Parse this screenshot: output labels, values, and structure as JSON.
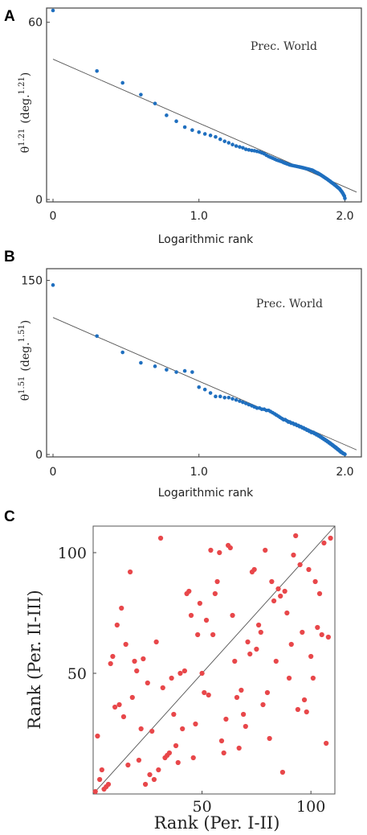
{
  "chart_data": [
    {
      "panel": "A",
      "type": "scatter",
      "annotation": "Prec. World",
      "ylabel": "θ^1.21 (deg.^1.21)",
      "ylabel_base": "θ",
      "ylabel_exp": "1.21",
      "ylabel_unit": "(deg.",
      "ylabel_unit_exp": "1.21",
      "ylabel_close": ")",
      "xlabel": "Logarithmic rank",
      "xlim": [
        0,
        2.08
      ],
      "ylim": [
        0,
        64
      ],
      "x_ticks": [
        {
          "v": 0,
          "label": "0"
        },
        {
          "v": 1,
          "label": "1.0"
        },
        {
          "v": 2,
          "label": "2.0"
        }
      ],
      "y_ticks": [
        {
          "v": 0,
          "label": "0"
        },
        {
          "v": 60,
          "label": "60"
        }
      ],
      "fit_line": [
        [
          0,
          47.5
        ],
        [
          2.08,
          2.5
        ]
      ],
      "points": [
        [
          0,
          64
        ],
        [
          0.301,
          43.5
        ],
        [
          0.477,
          39.5
        ],
        [
          0.602,
          35.5
        ],
        [
          0.699,
          32.5
        ],
        [
          0.778,
          28.5
        ],
        [
          0.845,
          26.5
        ],
        [
          0.903,
          24.5
        ],
        [
          0.954,
          23.5
        ],
        [
          1.0,
          22.8
        ],
        [
          1.041,
          22.2
        ],
        [
          1.079,
          21.7
        ],
        [
          1.114,
          21.2
        ],
        [
          1.146,
          20.4
        ],
        [
          1.176,
          19.7
        ],
        [
          1.204,
          19.2
        ],
        [
          1.23,
          18.6
        ],
        [
          1.255,
          18.1
        ],
        [
          1.279,
          17.8
        ],
        [
          1.301,
          17.5
        ],
        [
          1.322,
          17.0
        ],
        [
          1.342,
          16.8
        ],
        [
          1.362,
          16.6
        ],
        [
          1.38,
          16.5
        ],
        [
          1.398,
          16.3
        ],
        [
          1.415,
          16.1
        ],
        [
          1.431,
          15.8
        ],
        [
          1.447,
          15.5
        ],
        [
          1.462,
          15.0
        ],
        [
          1.477,
          14.6
        ],
        [
          1.491,
          14.3
        ],
        [
          1.505,
          14.0
        ],
        [
          1.519,
          13.7
        ],
        [
          1.531,
          13.4
        ],
        [
          1.544,
          13.2
        ],
        [
          1.556,
          13.0
        ],
        [
          1.568,
          12.8
        ],
        [
          1.58,
          12.5
        ],
        [
          1.591,
          12.3
        ],
        [
          1.602,
          12.1
        ],
        [
          1.613,
          11.9
        ],
        [
          1.623,
          11.7
        ],
        [
          1.633,
          11.6
        ],
        [
          1.643,
          11.5
        ],
        [
          1.653,
          11.4
        ],
        [
          1.663,
          11.3
        ],
        [
          1.672,
          11.2
        ],
        [
          1.681,
          11.1
        ],
        [
          1.69,
          11.0
        ],
        [
          1.699,
          10.9
        ],
        [
          1.708,
          10.8
        ],
        [
          1.716,
          10.7
        ],
        [
          1.724,
          10.6
        ],
        [
          1.732,
          10.5
        ],
        [
          1.74,
          10.4
        ],
        [
          1.748,
          10.3
        ],
        [
          1.756,
          10.2
        ],
        [
          1.763,
          10.1
        ],
        [
          1.771,
          10.0
        ],
        [
          1.778,
          9.9
        ],
        [
          1.785,
          9.7
        ],
        [
          1.792,
          9.5
        ],
        [
          1.799,
          9.3
        ],
        [
          1.806,
          9.1
        ],
        [
          1.813,
          9.0
        ],
        [
          1.82,
          8.8
        ],
        [
          1.826,
          8.6
        ],
        [
          1.833,
          8.4
        ],
        [
          1.839,
          8.2
        ],
        [
          1.845,
          8.0
        ],
        [
          1.851,
          7.8
        ],
        [
          1.857,
          7.6
        ],
        [
          1.863,
          7.4
        ],
        [
          1.869,
          7.2
        ],
        [
          1.875,
          7.0
        ],
        [
          1.881,
          6.8
        ],
        [
          1.886,
          6.6
        ],
        [
          1.892,
          6.4
        ],
        [
          1.898,
          6.2
        ],
        [
          1.903,
          6.0
        ],
        [
          1.908,
          5.8
        ],
        [
          1.914,
          5.6
        ],
        [
          1.919,
          5.4
        ],
        [
          1.924,
          5.2
        ],
        [
          1.929,
          5.0
        ],
        [
          1.934,
          4.8
        ],
        [
          1.94,
          4.6
        ],
        [
          1.944,
          4.4
        ],
        [
          1.949,
          4.2
        ],
        [
          1.954,
          4.0
        ],
        [
          1.959,
          3.8
        ],
        [
          1.964,
          3.6
        ],
        [
          1.968,
          3.3
        ],
        [
          1.973,
          3.0
        ],
        [
          1.978,
          2.7
        ],
        [
          1.982,
          2.4
        ],
        [
          1.987,
          2.0
        ],
        [
          1.991,
          1.6
        ],
        [
          1.996,
          1.2
        ],
        [
          2.0,
          0.4
        ]
      ]
    },
    {
      "panel": "B",
      "type": "scatter",
      "annotation": "Prec. World",
      "ylabel": "θ^1.51 (deg.^1.51)",
      "ylabel_base": "θ",
      "ylabel_exp": "1.51",
      "ylabel_unit": "(deg.",
      "ylabel_unit_exp": "1.51",
      "ylabel_close": ")",
      "xlabel": "Logarithmic rank",
      "xlim": [
        0,
        2.08
      ],
      "ylim": [
        0,
        158
      ],
      "x_ticks": [
        {
          "v": 0,
          "label": "0"
        },
        {
          "v": 1,
          "label": "1.0"
        },
        {
          "v": 2,
          "label": "2.0"
        }
      ],
      "y_ticks": [
        {
          "v": 0,
          "label": "0"
        },
        {
          "v": 150,
          "label": "150"
        }
      ],
      "fit_line": [
        [
          0,
          118
        ],
        [
          2.08,
          4
        ]
      ],
      "points": [
        [
          0,
          146
        ],
        [
          0.301,
          102
        ],
        [
          0.477,
          88
        ],
        [
          0.602,
          79
        ],
        [
          0.699,
          76
        ],
        [
          0.778,
          73
        ],
        [
          0.845,
          71
        ],
        [
          0.903,
          72
        ],
        [
          0.954,
          71
        ],
        [
          1.0,
          58
        ],
        [
          1.041,
          56
        ],
        [
          1.079,
          53
        ],
        [
          1.114,
          50
        ],
        [
          1.146,
          50
        ],
        [
          1.176,
          49
        ],
        [
          1.204,
          49
        ],
        [
          1.23,
          48
        ],
        [
          1.255,
          47
        ],
        [
          1.279,
          46
        ],
        [
          1.301,
          45
        ],
        [
          1.322,
          44
        ],
        [
          1.342,
          43
        ],
        [
          1.362,
          42
        ],
        [
          1.38,
          41
        ],
        [
          1.398,
          40
        ],
        [
          1.415,
          40
        ],
        [
          1.431,
          39
        ],
        [
          1.447,
          39
        ],
        [
          1.462,
          38
        ],
        [
          1.477,
          38
        ],
        [
          1.491,
          37
        ],
        [
          1.505,
          36
        ],
        [
          1.519,
          35
        ],
        [
          1.531,
          34
        ],
        [
          1.544,
          33
        ],
        [
          1.556,
          32
        ],
        [
          1.568,
          31
        ],
        [
          1.58,
          30
        ],
        [
          1.591,
          30
        ],
        [
          1.602,
          29
        ],
        [
          1.613,
          28
        ],
        [
          1.623,
          28
        ],
        [
          1.633,
          27
        ],
        [
          1.643,
          27
        ],
        [
          1.653,
          26
        ],
        [
          1.663,
          26
        ],
        [
          1.672,
          25
        ],
        [
          1.681,
          25
        ],
        [
          1.69,
          24
        ],
        [
          1.699,
          24
        ],
        [
          1.708,
          23
        ],
        [
          1.716,
          23
        ],
        [
          1.724,
          22
        ],
        [
          1.732,
          22
        ],
        [
          1.74,
          21
        ],
        [
          1.748,
          21
        ],
        [
          1.756,
          20
        ],
        [
          1.763,
          20
        ],
        [
          1.771,
          19
        ],
        [
          1.778,
          19
        ],
        [
          1.785,
          19
        ],
        [
          1.792,
          18
        ],
        [
          1.799,
          18
        ],
        [
          1.806,
          17
        ],
        [
          1.813,
          17
        ],
        [
          1.82,
          16
        ],
        [
          1.826,
          16
        ],
        [
          1.833,
          15
        ],
        [
          1.839,
          15
        ],
        [
          1.845,
          14
        ],
        [
          1.851,
          14
        ],
        [
          1.857,
          13
        ],
        [
          1.863,
          13
        ],
        [
          1.869,
          12
        ],
        [
          1.875,
          12
        ],
        [
          1.881,
          11
        ],
        [
          1.886,
          11
        ],
        [
          1.892,
          10
        ],
        [
          1.898,
          10
        ],
        [
          1.903,
          9
        ],
        [
          1.908,
          9
        ],
        [
          1.914,
          8
        ],
        [
          1.919,
          8
        ],
        [
          1.924,
          7
        ],
        [
          1.929,
          7
        ],
        [
          1.934,
          6
        ],
        [
          1.94,
          6
        ],
        [
          1.944,
          5
        ],
        [
          1.949,
          5
        ],
        [
          1.954,
          4
        ],
        [
          1.959,
          4
        ],
        [
          1.964,
          3
        ],
        [
          1.968,
          3
        ],
        [
          1.973,
          2
        ],
        [
          1.978,
          2
        ],
        [
          1.982,
          1.5
        ],
        [
          1.987,
          1
        ],
        [
          1.991,
          0.8
        ],
        [
          1.996,
          0.5
        ],
        [
          2.0,
          0.2
        ]
      ]
    },
    {
      "panel": "C",
      "type": "scatter",
      "xlabel": "Rank (Per. I-II)",
      "ylabel": "Rank (Per. II-III)",
      "xlim": [
        0,
        111
      ],
      "ylim": [
        0,
        111
      ],
      "x_ticks": [
        {
          "v": 50,
          "label": "50"
        },
        {
          "v": 100,
          "label": "100"
        }
      ],
      "y_ticks": [
        {
          "v": 50,
          "label": "50"
        },
        {
          "v": 100,
          "label": "100"
        }
      ],
      "fit_line": [
        [
          0,
          0
        ],
        [
          111,
          111
        ]
      ],
      "points": [
        [
          1,
          1
        ],
        [
          2,
          24
        ],
        [
          3,
          6
        ],
        [
          4,
          10
        ],
        [
          5,
          2
        ],
        [
          6,
          3
        ],
        [
          7,
          4
        ],
        [
          8,
          54
        ],
        [
          9,
          57
        ],
        [
          10,
          36
        ],
        [
          11,
          70
        ],
        [
          12,
          37
        ],
        [
          13,
          77
        ],
        [
          14,
          32
        ],
        [
          15,
          62
        ],
        [
          16,
          12
        ],
        [
          17,
          92
        ],
        [
          18,
          40
        ],
        [
          19,
          55
        ],
        [
          20,
          51
        ],
        [
          21,
          14
        ],
        [
          22,
          27
        ],
        [
          23,
          56
        ],
        [
          24,
          4
        ],
        [
          25,
          46
        ],
        [
          26,
          8
        ],
        [
          27,
          26
        ],
        [
          28,
          6
        ],
        [
          29,
          63
        ],
        [
          30,
          10
        ],
        [
          31,
          106
        ],
        [
          32,
          44
        ],
        [
          33,
          15
        ],
        [
          34,
          16
        ],
        [
          35,
          17
        ],
        [
          36,
          48
        ],
        [
          37,
          33
        ],
        [
          38,
          20
        ],
        [
          39,
          13
        ],
        [
          40,
          50
        ],
        [
          41,
          27
        ],
        [
          42,
          51
        ],
        [
          43,
          83
        ],
        [
          44,
          84
        ],
        [
          45,
          74
        ],
        [
          46,
          15
        ],
        [
          47,
          29
        ],
        [
          48,
          66
        ],
        [
          49,
          79
        ],
        [
          50,
          50
        ],
        [
          51,
          42
        ],
        [
          52,
          72
        ],
        [
          53,
          41
        ],
        [
          54,
          101
        ],
        [
          55,
          66
        ],
        [
          56,
          83
        ],
        [
          57,
          88
        ],
        [
          58,
          100
        ],
        [
          59,
          22
        ],
        [
          60,
          17
        ],
        [
          61,
          31
        ],
        [
          62,
          103
        ],
        [
          63,
          102
        ],
        [
          64,
          74
        ],
        [
          65,
          55
        ],
        [
          66,
          40
        ],
        [
          67,
          19
        ],
        [
          68,
          43
        ],
        [
          69,
          33
        ],
        [
          70,
          28
        ],
        [
          71,
          63
        ],
        [
          72,
          58
        ],
        [
          73,
          92
        ],
        [
          74,
          93
        ],
        [
          75,
          60
        ],
        [
          76,
          70
        ],
        [
          77,
          67
        ],
        [
          78,
          37
        ],
        [
          79,
          101
        ],
        [
          80,
          42
        ],
        [
          81,
          23
        ],
        [
          82,
          88
        ],
        [
          83,
          80
        ],
        [
          84,
          55
        ],
        [
          85,
          85
        ],
        [
          86,
          82
        ],
        [
          87,
          9
        ],
        [
          88,
          84
        ],
        [
          89,
          75
        ],
        [
          90,
          48
        ],
        [
          91,
          62
        ],
        [
          92,
          99
        ],
        [
          93,
          107
        ],
        [
          94,
          35
        ],
        [
          95,
          95
        ],
        [
          96,
          67
        ],
        [
          97,
          39
        ],
        [
          98,
          34
        ],
        [
          99,
          93
        ],
        [
          100,
          57
        ],
        [
          101,
          48
        ],
        [
          102,
          88
        ],
        [
          103,
          69
        ],
        [
          104,
          83
        ],
        [
          105,
          66
        ],
        [
          106,
          104
        ],
        [
          107,
          21
        ],
        [
          108,
          65
        ],
        [
          109,
          106
        ]
      ]
    }
  ],
  "panels": {
    "a": {
      "letter": "A"
    },
    "b": {
      "letter": "B"
    },
    "c": {
      "letter": "C"
    }
  },
  "colors": {
    "blue": "#1f6fbf",
    "red": "#e8474a",
    "line": "#555555",
    "frame": "#444444"
  }
}
